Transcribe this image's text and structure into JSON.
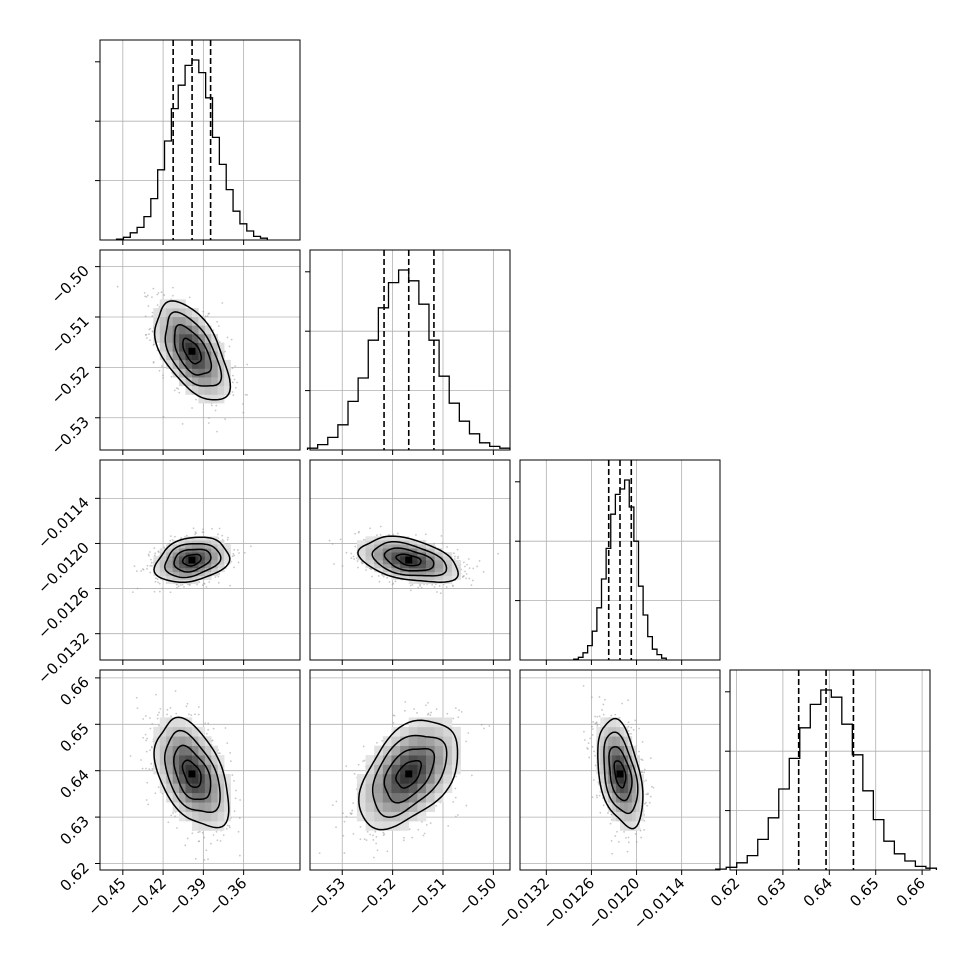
{
  "chart_data": {
    "type": "corner",
    "title": "",
    "grid": true,
    "quantile_lines": "dashed",
    "parameters": [
      {
        "index": 0,
        "range": [
          -0.467,
          -0.318
        ],
        "ticks": [
          -0.45,
          -0.42,
          -0.39,
          -0.36
        ],
        "tick_labels": [
          "−0.45",
          "−0.42",
          "−0.39",
          "−0.36"
        ],
        "quantiles": [
          -0.4125,
          -0.3984,
          -0.3846
        ],
        "mean": -0.3985,
        "sd": 0.0137
      },
      {
        "index": 1,
        "range": [
          -0.5364,
          -0.4967
        ],
        "ticks": [
          -0.53,
          -0.52,
          -0.51,
          -0.5
        ],
        "tick_labels": [
          "−0.53",
          "−0.52",
          "−0.51",
          "−0.50"
        ],
        "quantiles": [
          -0.5217,
          -0.5168,
          -0.5118
        ],
        "mean": -0.5168,
        "sd": 0.0049
      },
      {
        "index": 2,
        "range": [
          -0.01355,
          -0.01089
        ],
        "ticks": [
          -0.0132,
          -0.0126,
          -0.012,
          -0.0114
        ],
        "tick_labels": [
          "−0.0132",
          "−0.0126",
          "−0.0120",
          "−0.0114"
        ],
        "quantiles": [
          -0.01237,
          -0.01222,
          -0.01207
        ],
        "mean": -0.01222,
        "sd": 0.00015
      },
      {
        "index": 3,
        "range": [
          0.6186,
          0.6617
        ],
        "ticks": [
          0.62,
          0.63,
          0.64,
          0.65,
          0.66
        ],
        "tick_labels": [
          "0.62",
          "0.63",
          "0.64",
          "0.65",
          "0.66"
        ],
        "quantiles": [
          0.6334,
          0.6393,
          0.6452
        ],
        "mean": 0.6393,
        "sd": 0.0058
      }
    ],
    "correlations": [
      [
        1.0,
        -0.55,
        0.25,
        -0.45
      ],
      [
        -0.55,
        1.0,
        -0.4,
        0.45
      ],
      [
        0.25,
        -0.4,
        1.0,
        -0.4
      ],
      [
        -0.45,
        0.45,
        -0.4,
        1.0
      ]
    ],
    "histograms": [
      [
        0.005,
        0.015,
        0.04,
        0.07,
        0.13,
        0.23,
        0.39,
        0.55,
        0.73,
        0.86,
        0.97,
        1.0,
        0.93,
        0.79,
        0.57,
        0.42,
        0.28,
        0.16,
        0.09,
        0.05,
        0.02,
        0.01
      ],
      [
        0.01,
        0.03,
        0.07,
        0.14,
        0.27,
        0.4,
        0.61,
        0.79,
        0.93,
        1.0,
        0.94,
        0.81,
        0.61,
        0.41,
        0.26,
        0.16,
        0.09,
        0.04,
        0.02,
        0.01
      ],
      [
        0.005,
        0.015,
        0.04,
        0.08,
        0.16,
        0.29,
        0.45,
        0.62,
        0.81,
        0.92,
        0.95,
        1.0,
        0.85,
        0.66,
        0.41,
        0.25,
        0.13,
        0.06,
        0.03,
        0.01
      ],
      [
        0.005,
        0.015,
        0.04,
        0.08,
        0.17,
        0.29,
        0.45,
        0.62,
        0.79,
        0.92,
        1.0,
        0.96,
        0.81,
        0.64,
        0.44,
        0.28,
        0.16,
        0.09,
        0.05,
        0.02,
        0.01
      ]
    ],
    "contour_levels_sigma": [
      0.5,
      1.0,
      1.5,
      2.0
    ]
  }
}
